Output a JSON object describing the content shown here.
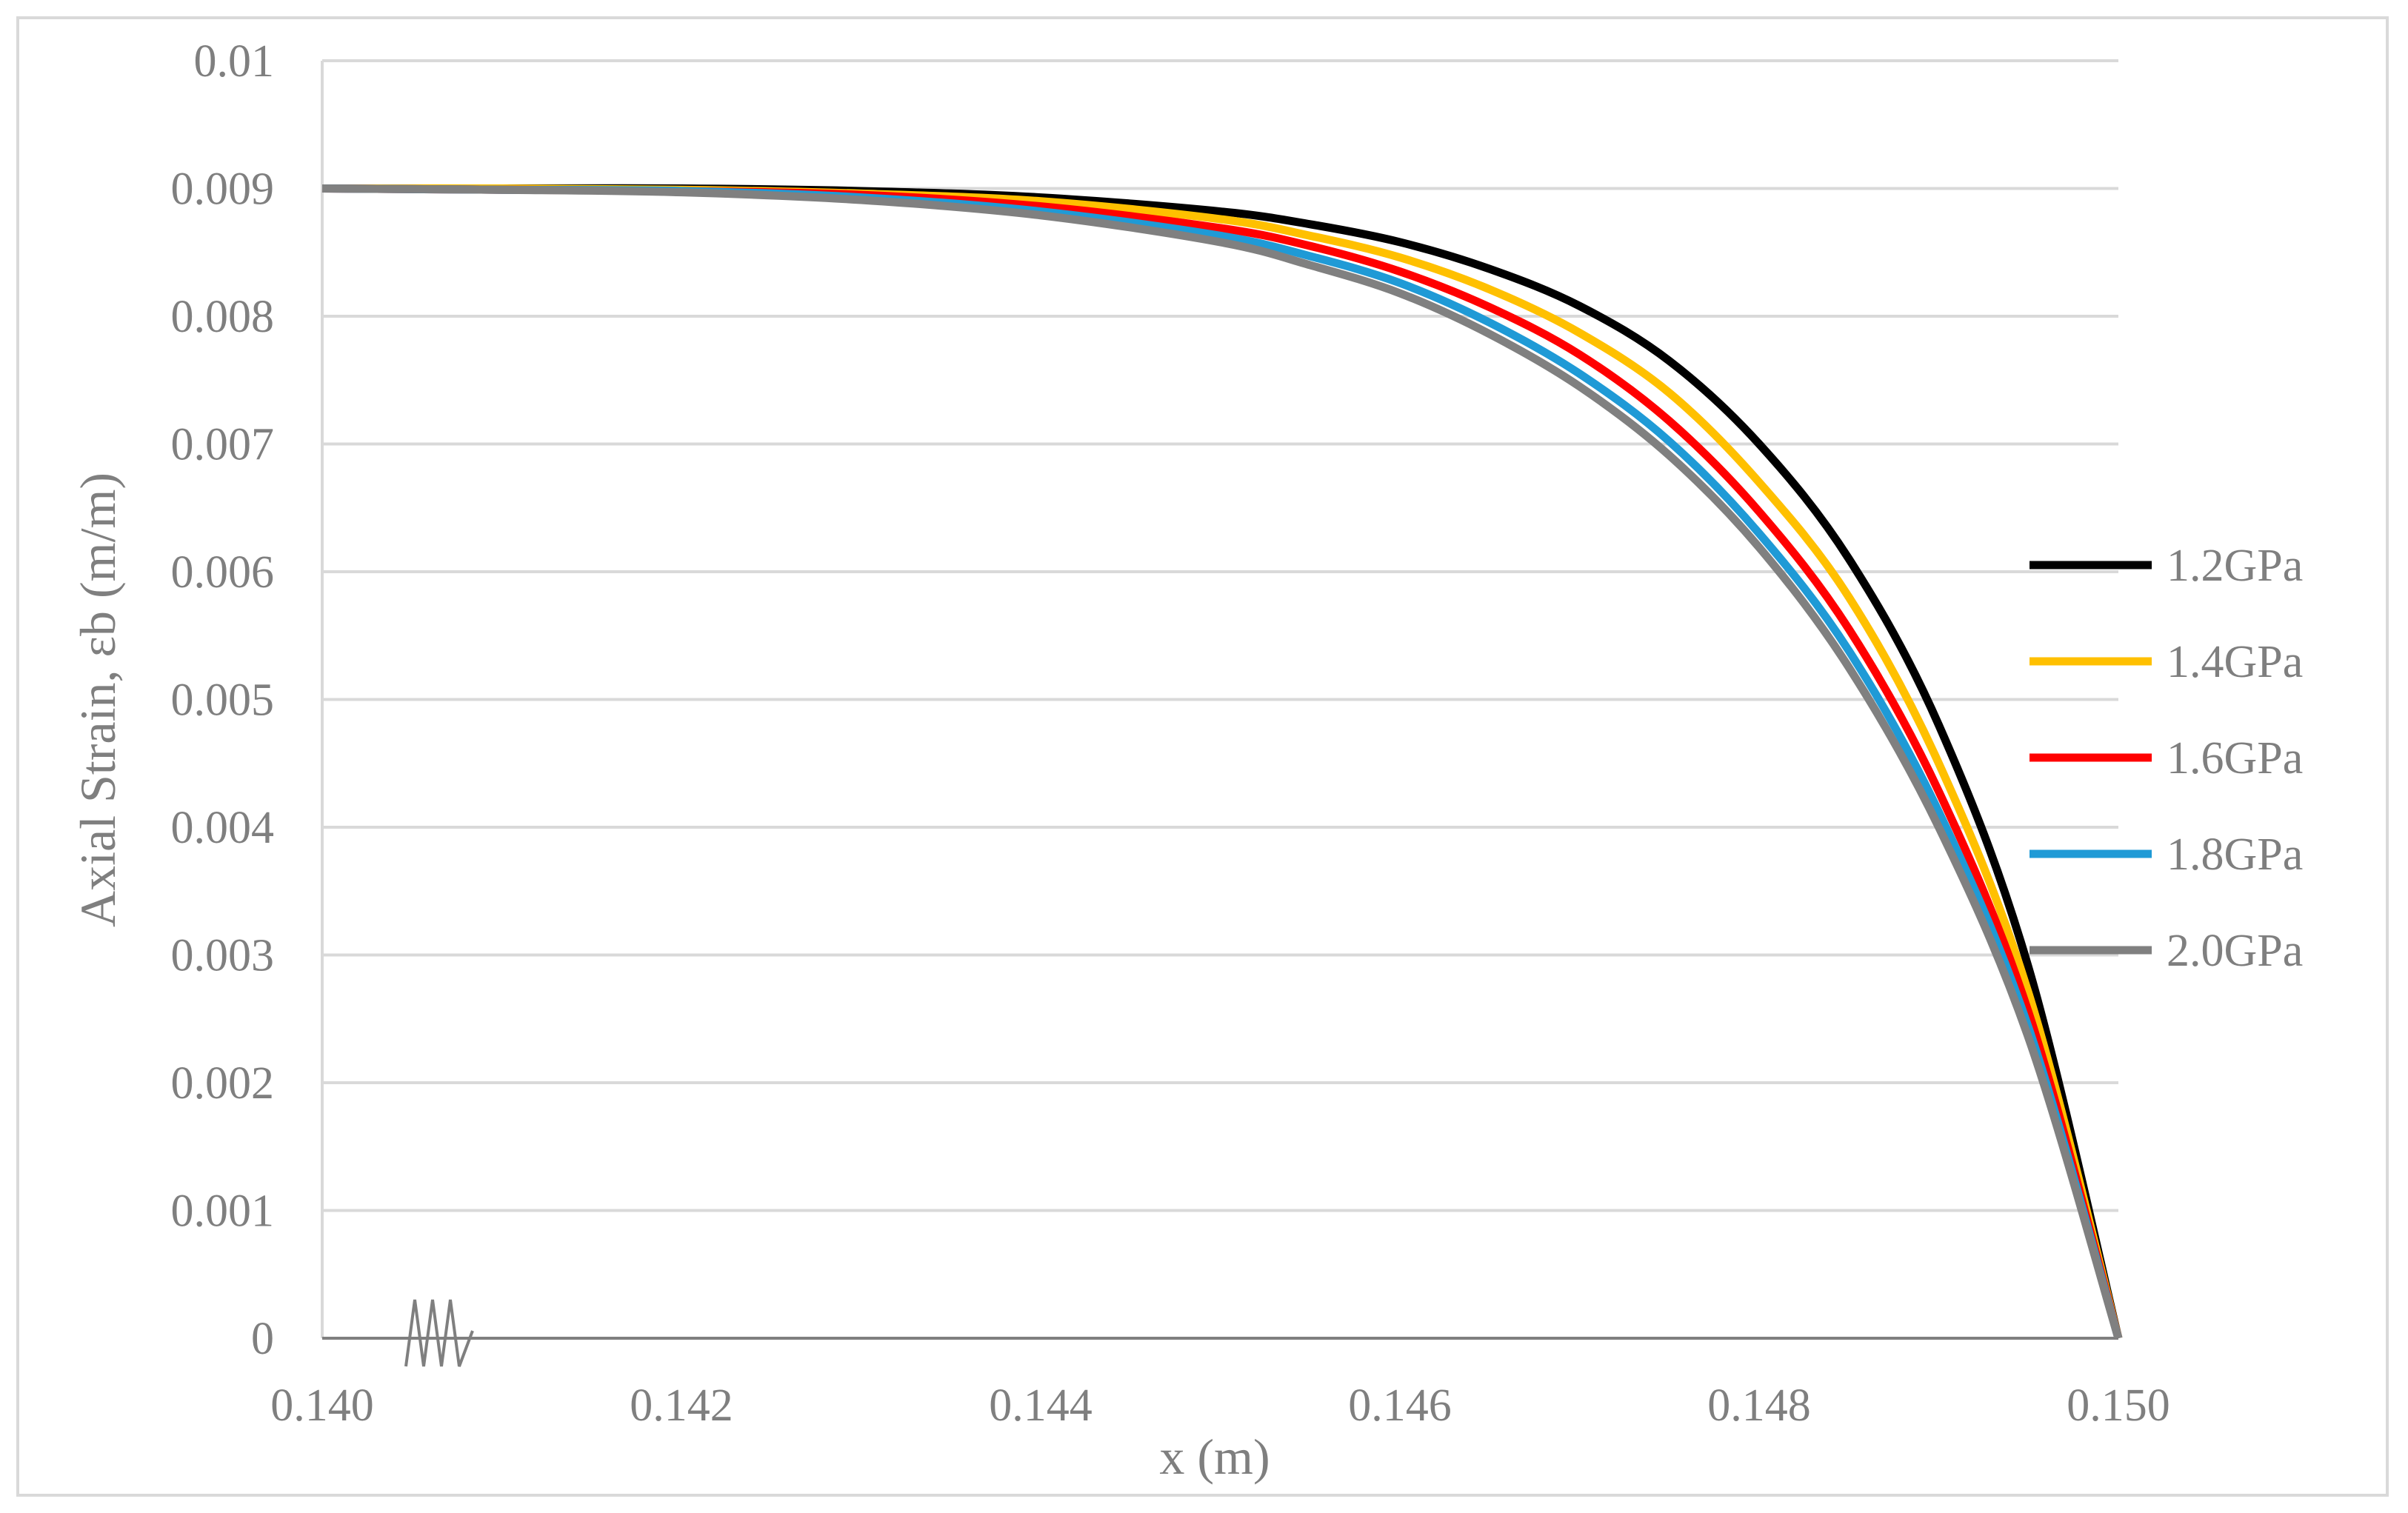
{
  "chart_data": {
    "type": "line",
    "title": "",
    "xlabel": "x (m)",
    "ylabel": "Axial Strain, εb (m/m)",
    "xlim": [
      0.14,
      0.15
    ],
    "ylim": [
      0,
      0.01
    ],
    "x_ticks": [
      "0.140",
      "0.142",
      "0.144",
      "0.146",
      "0.148",
      "0.150"
    ],
    "y_ticks": [
      "0",
      "0.001",
      "0.002",
      "0.003",
      "0.004",
      "0.005",
      "0.006",
      "0.007",
      "0.008",
      "0.009",
      "0.01"
    ],
    "x_tick_values": [
      0.14,
      0.142,
      0.144,
      0.146,
      0.148,
      0.15
    ],
    "y_tick_values": [
      0,
      0.001,
      0.002,
      0.003,
      0.004,
      0.005,
      0.006,
      0.007,
      0.008,
      0.009,
      0.01
    ],
    "grid": "horizontal",
    "axis_break": "x-axis near 0.1405",
    "legend_position": "right",
    "x": [
      0.14,
      0.141,
      0.142,
      0.143,
      0.144,
      0.145,
      0.1455,
      0.146,
      0.1465,
      0.147,
      0.1475,
      0.148,
      0.1485,
      0.149,
      0.1495,
      0.15
    ],
    "series": [
      {
        "name": "1.2GPa",
        "color": "#000000",
        "values": [
          0.009,
          0.009,
          0.009,
          0.00898,
          0.00893,
          0.00882,
          0.00872,
          0.00858,
          0.00837,
          0.00808,
          0.00765,
          0.007,
          0.0061,
          0.0048,
          0.0029,
          0.0
        ]
      },
      {
        "name": "1.4GPa",
        "color": "#ffc000",
        "values": [
          0.009,
          0.009,
          0.00899,
          0.00896,
          0.0089,
          0.00876,
          0.00863,
          0.00846,
          0.00821,
          0.00787,
          0.0074,
          0.0067,
          0.0058,
          0.0045,
          0.0027,
          0.0
        ]
      },
      {
        "name": "1.6GPa",
        "color": "#ff0000",
        "values": [
          0.009,
          0.00899,
          0.00898,
          0.00895,
          0.00886,
          0.00869,
          0.00855,
          0.00835,
          0.00807,
          0.0077,
          0.00718,
          0.00647,
          0.00555,
          0.00428,
          0.00255,
          0.0
        ]
      },
      {
        "name": "1.8GPa",
        "color": "#1f9ad6",
        "values": [
          0.009,
          0.00899,
          0.00898,
          0.00893,
          0.00882,
          0.00863,
          0.00847,
          0.00826,
          0.00795,
          0.00755,
          0.00702,
          0.0063,
          0.00538,
          0.00412,
          0.00243,
          0.0
        ]
      },
      {
        "name": "2.0GPa",
        "color": "#808080",
        "values": [
          0.009,
          0.00899,
          0.00897,
          0.00891,
          0.00879,
          0.00858,
          0.0084,
          0.00818,
          0.00786,
          0.00745,
          0.00691,
          0.00619,
          0.00525,
          0.004,
          0.00235,
          0.0
        ]
      }
    ]
  }
}
